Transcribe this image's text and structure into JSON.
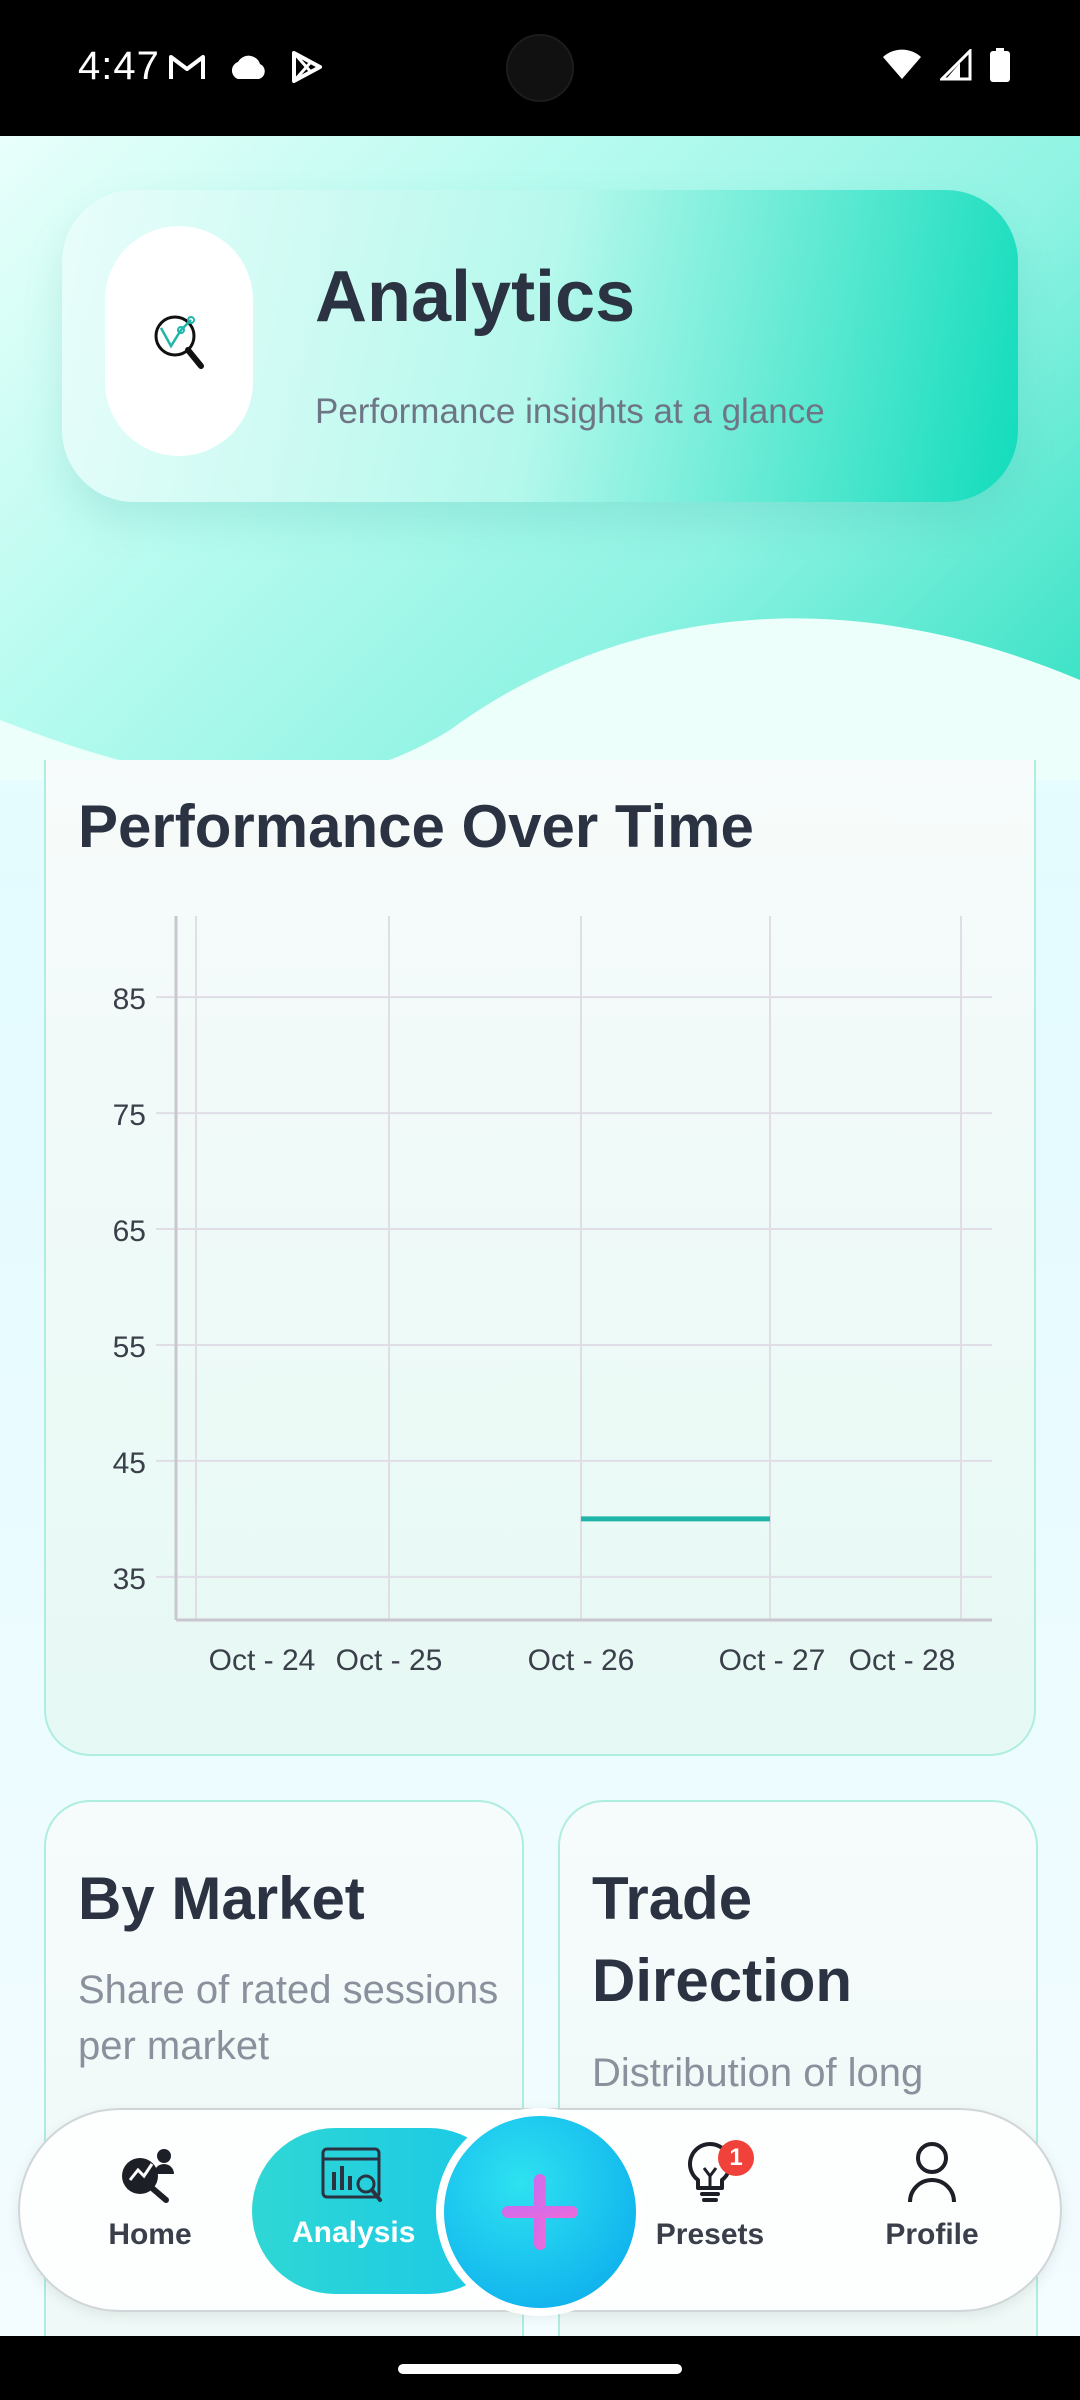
{
  "status_bar": {
    "time": "4:47",
    "notification_icons": [
      "gmail-icon",
      "cloud-icon",
      "play-store-icon"
    ],
    "system_icons": [
      "wifi-icon",
      "signal-icon",
      "battery-icon"
    ]
  },
  "header": {
    "title": "Analytics",
    "subtitle": "Performance insights at a glance",
    "logo_icon": "magnifier-chart-icon"
  },
  "chart_card": {
    "title": "Performance Over Time"
  },
  "chart_data": {
    "type": "line",
    "title": "Performance Over Time",
    "x": [
      "Oct - 24",
      "Oct - 25",
      "Oct - 26",
      "Oct - 27",
      "Oct - 28"
    ],
    "yticks": [
      35,
      45,
      55,
      65,
      75,
      85
    ],
    "ylim": [
      33,
      92
    ],
    "grid": true,
    "series": [
      {
        "points": [
          [
            "Oct - 26",
            40
          ],
          [
            "Oct - 27",
            40
          ]
        ],
        "color": "#1fb5a8"
      }
    ]
  },
  "cards": [
    {
      "title": "By Market",
      "description": "Share of rated sessions per market"
    },
    {
      "title": "Trade Direction",
      "description": "Distribution of long"
    }
  ],
  "nav": {
    "items": [
      {
        "label": "Home",
        "icon": "home-analytics-icon"
      },
      {
        "label": "Analysis",
        "icon": "analysis-icon",
        "active": true
      },
      {
        "label": "Presets",
        "icon": "lightbulb-icon",
        "badge": "1"
      },
      {
        "label": "Profile",
        "icon": "person-icon"
      }
    ],
    "fab_icon": "plus-icon"
  },
  "colors": {
    "accent": "#19c8e8",
    "teal": "#12dcbc",
    "text_dark": "#2b3242",
    "badge": "#f0413a"
  }
}
